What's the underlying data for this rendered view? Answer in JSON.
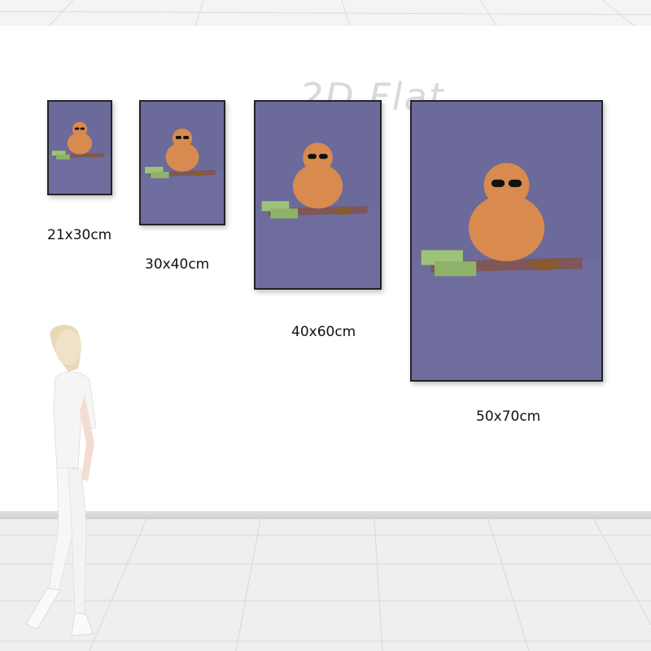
{
  "watermark": "2D Flat",
  "sizes": [
    {
      "label": "21x30cm"
    },
    {
      "label": "30x40cm"
    },
    {
      "label": "40x60cm"
    },
    {
      "label": "50x70cm"
    }
  ],
  "colors": {
    "canvas": "#6b6a9a",
    "cat": "#d98a4e",
    "money": "#9ec27a",
    "wall": "#ffffff",
    "floor": "#efefef"
  }
}
